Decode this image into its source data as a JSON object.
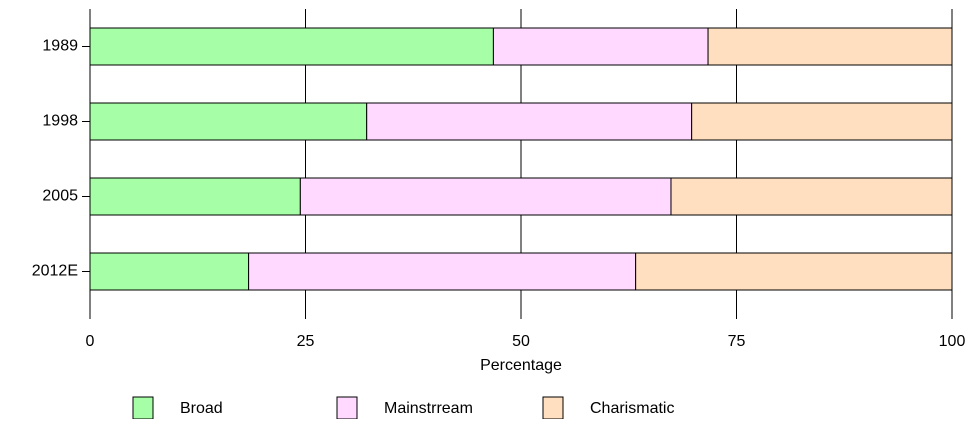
{
  "chart_data": {
    "type": "stacked-barh",
    "categories": [
      "1989",
      "1998",
      "2005",
      "2012E"
    ],
    "series": [
      {
        "name": "Broad",
        "color": "#a6ffa6",
        "values": [
          46.8,
          32.1,
          24.4,
          18.4
        ]
      },
      {
        "name": "Mainstrream",
        "color": "#ffd9ff",
        "values": [
          24.9,
          37.7,
          43.0,
          44.9
        ]
      },
      {
        "name": "Charismatic",
        "color": "#ffdfbf",
        "values": [
          28.3,
          30.2,
          32.6,
          36.7
        ]
      }
    ],
    "xlabel": "Percentage",
    "xlim": [
      0,
      100
    ],
    "xticks": [
      0,
      25,
      50,
      75,
      100
    ],
    "grid": true
  }
}
